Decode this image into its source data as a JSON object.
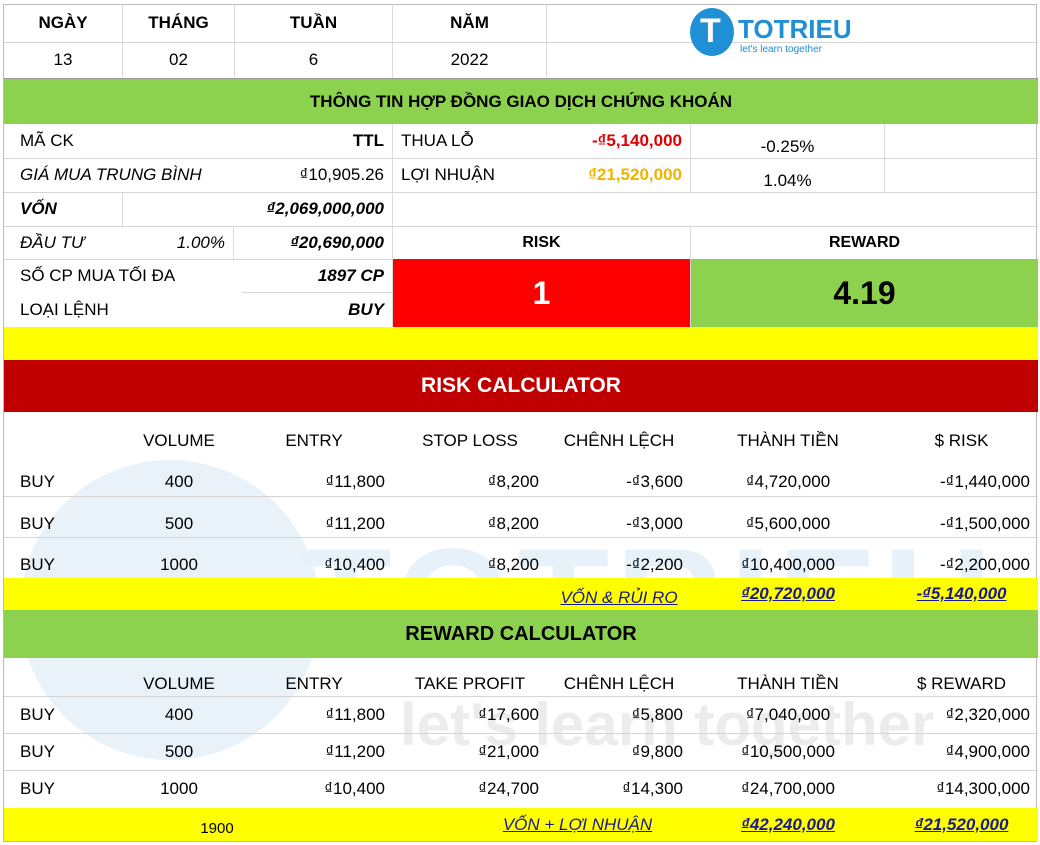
{
  "colors": {
    "green": "#8cd24f",
    "yellow": "#ffff00",
    "dark_red": "#c00000",
    "red": "#ff0000",
    "loss": "#e00000",
    "profit": "#f0b400",
    "brand": "#1f8fd6"
  },
  "date_header": {
    "labels": [
      "NGÀY",
      "THÁNG",
      "TUẦN",
      "NĂM"
    ],
    "values": [
      "13",
      "02",
      "6",
      "2022"
    ]
  },
  "logo": {
    "name": "TOTRIEU",
    "tagline": "let's learn together",
    "watermark_name": "TOTRIEU",
    "watermark_tagline": "let's learn together"
  },
  "contract": {
    "title": "THÔNG TIN HỢP ĐỒNG GIAO DỊCH CHỨNG KHOÁN",
    "ma_ck_label": "MÃ CK",
    "ma_ck_value": "TTL",
    "thua_lo_label": "THUA LỖ",
    "thua_lo_value": "-₫5,140,000",
    "thua_lo_pct": "-0.25%",
    "avg_price_label": "GIÁ MUA TRUNG BÌNH",
    "avg_price_value": "₫10,905.26",
    "loi_nhuan_label": "LỢI NHUẬN",
    "loi_nhuan_value": "₫21,520,000",
    "loi_nhuan_pct": "1.04%",
    "von_label": "VỐN",
    "von_value": "₫2,069,000,000",
    "dau_tu_label": "ĐẦU TƯ",
    "dau_tu_pct": "1.00%",
    "dau_tu_value": "₫20,690,000",
    "risk_label": "RISK",
    "reward_label": "REWARD",
    "max_shares_label": "SỐ CP MUA TỐI ĐA",
    "max_shares_value": "1897 CP",
    "order_type_label": "LOẠI LỆNH",
    "order_type_value": "BUY",
    "risk_value": "1",
    "reward_value": "4.19"
  },
  "risk_calc": {
    "title": "RISK CALCULATOR",
    "headers": [
      "",
      "VOLUME",
      "ENTRY",
      "STOP LOSS",
      "CHÊNH LỆCH",
      "THÀNH TIỀN",
      "$ RISK"
    ],
    "rows": [
      [
        "BUY",
        "400",
        "₫11,800",
        "₫8,200",
        "-₫3,600",
        "₫4,720,000",
        "-₫1,440,000"
      ],
      [
        "BUY",
        "500",
        "₫11,200",
        "₫8,200",
        "-₫3,000",
        "₫5,600,000",
        "-₫1,500,000"
      ],
      [
        "BUY",
        "1000",
        "₫10,400",
        "₫8,200",
        "-₫2,200",
        "₫10,400,000",
        "-₫2,200,000"
      ]
    ],
    "total_label": "VỐN & RỦI RO",
    "total_amount": "₫20,720,000",
    "total_risk": "-₫5,140,000"
  },
  "reward_calc": {
    "title": "REWARD CALCULATOR",
    "headers": [
      "",
      "VOLUME",
      "ENTRY",
      "TAKE PROFIT",
      "CHÊNH LỆCH",
      "THÀNH TIỀN",
      "$ REWARD"
    ],
    "rows": [
      [
        "BUY",
        "400",
        "₫11,800",
        "₫17,600",
        "₫5,800",
        "₫7,040,000",
        "₫2,320,000"
      ],
      [
        "BUY",
        "500",
        "₫11,200",
        "₫21,000",
        "₫9,800",
        "₫10,500,000",
        "₫4,900,000"
      ],
      [
        "BUY",
        "1000",
        "₫10,400",
        "₫24,700",
        "₫14,300",
        "₫24,700,000",
        "₫14,300,000"
      ]
    ],
    "total_volume": "1900",
    "total_label": "VỐN + LỢI NHUẬN",
    "total_amount": "₫42,240,000",
    "total_reward": "₫21,520,000"
  }
}
